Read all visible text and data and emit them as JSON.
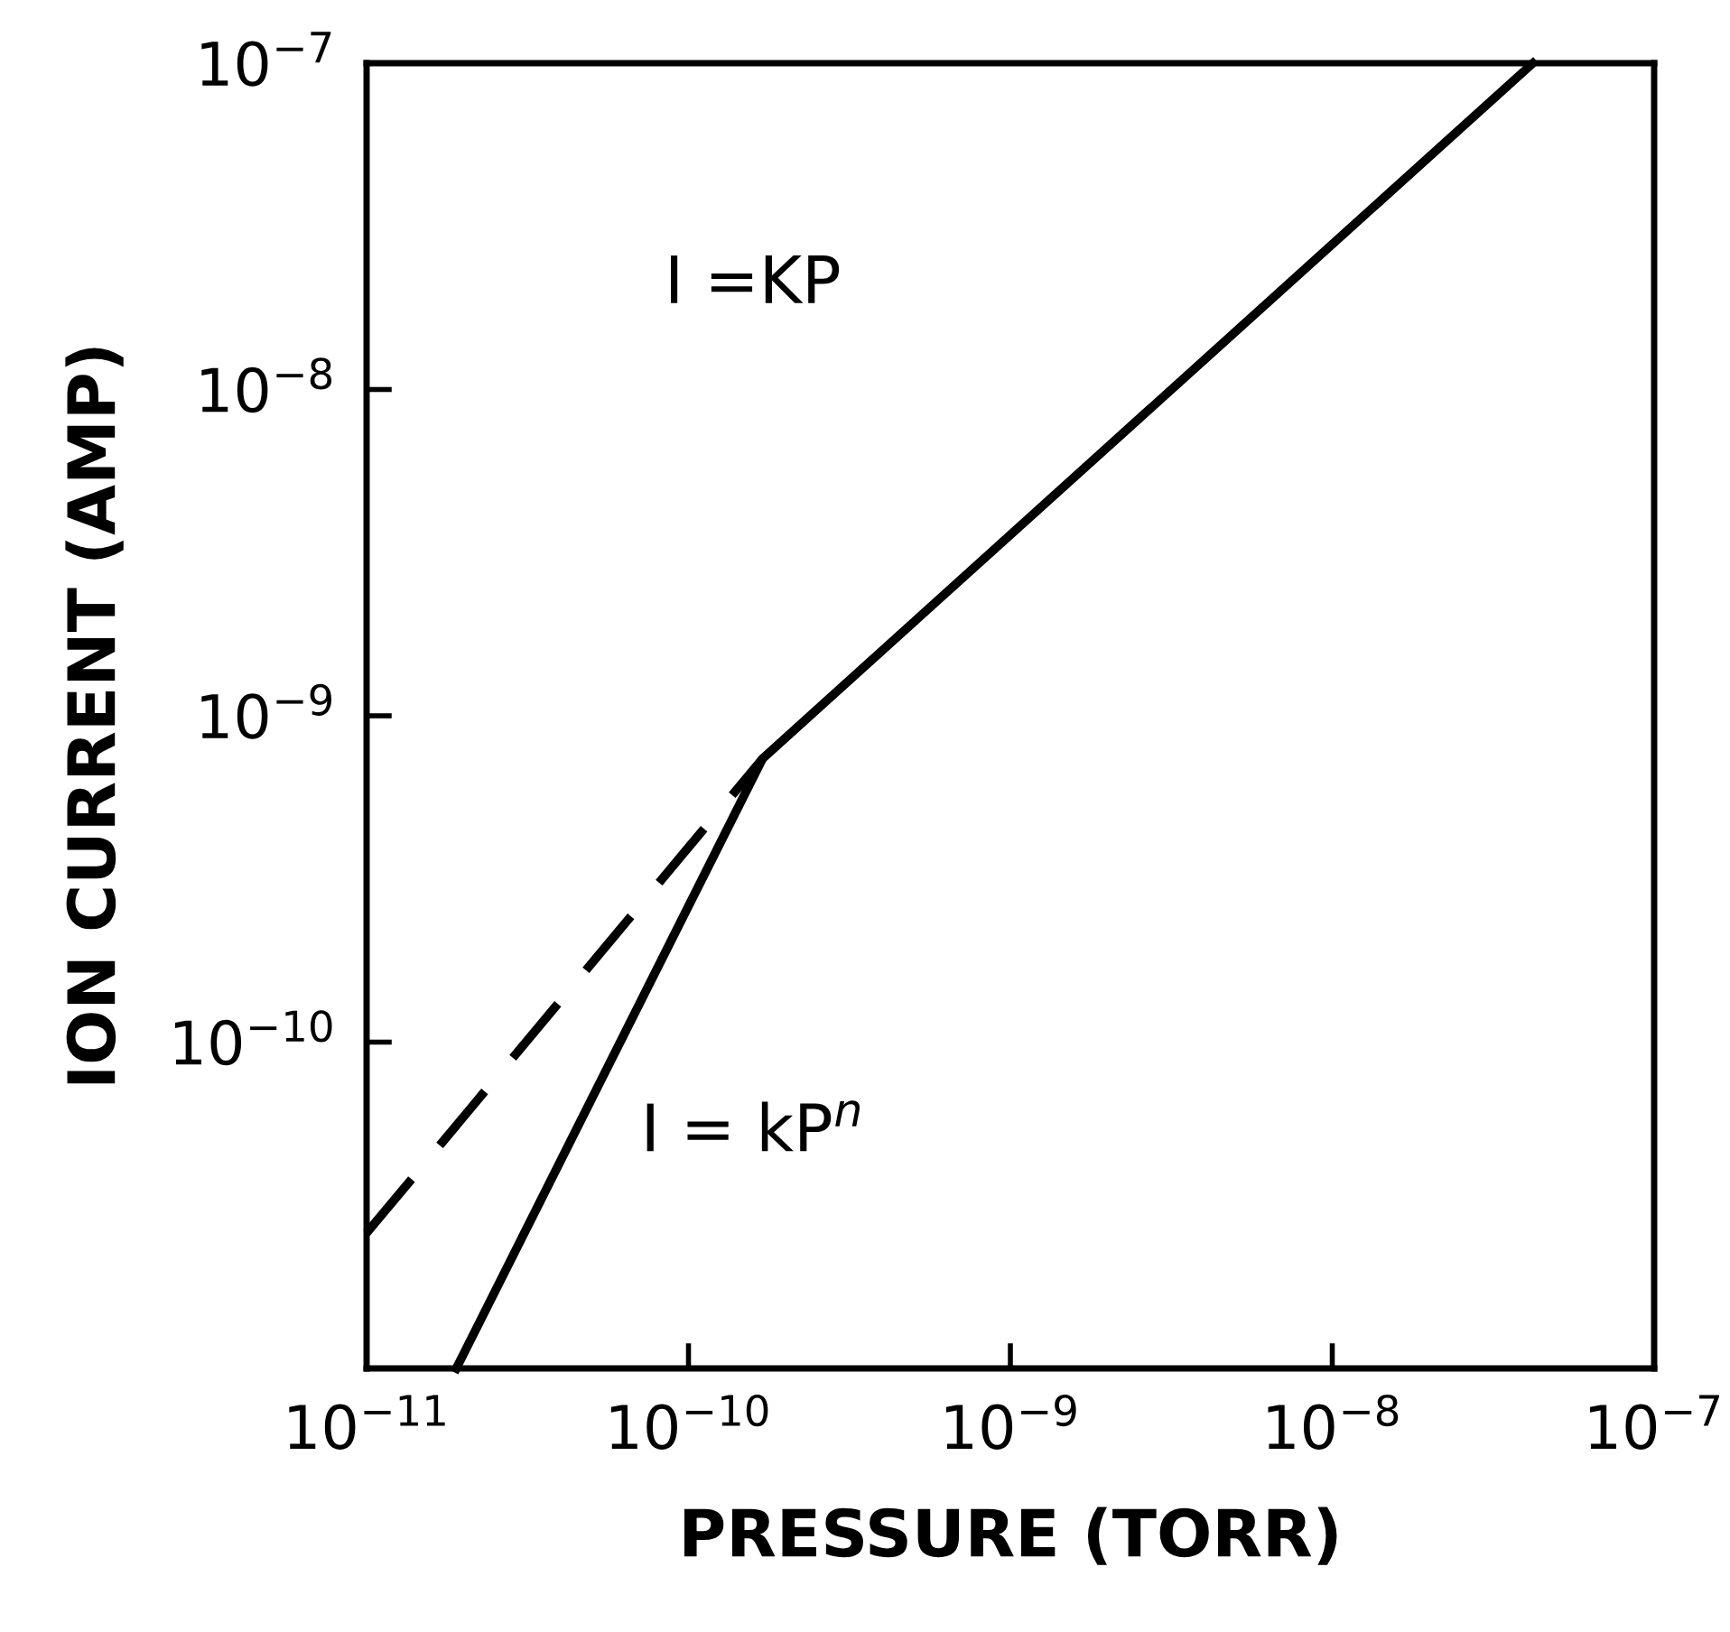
{
  "chart_data": {
    "type": "line",
    "xlabel": "PRESSURE (TORR)",
    "ylabel": "ION CURRENT (AMP)",
    "log": "xy",
    "grid": false,
    "marker": "none",
    "xlim": [
      1e-11,
      1e-07
    ],
    "ylim": [
      1e-11,
      1e-07
    ],
    "xticks": [
      {
        "value": 1e-11,
        "label": "10$^{−11}$"
      },
      {
        "value": 1e-10,
        "label": "10$^{−10}$"
      },
      {
        "value": 1e-09,
        "label": "10$^{−9}$"
      },
      {
        "value": 1e-08,
        "label": "10$^{−8}$"
      },
      {
        "value": 1e-07,
        "label": "10$^{−7}$"
      }
    ],
    "yticks": [
      {
        "value": 1e-11,
        "label": null
      },
      {
        "value": 1e-10,
        "label": "10$^{−10}$"
      },
      {
        "value": 1e-09,
        "label": "10$^{−9}$"
      },
      {
        "value": 1e-08,
        "label": "10$^{−8}$"
      },
      {
        "value": 1e-07,
        "label": "10$^{−7}$"
      }
    ],
    "series": [
      {
        "color": "#000000",
        "line_style": "solid",
        "x": [
          1.9e-11,
          1.7e-10,
          4.2e-08
        ],
        "values": [
          1e-11,
          7.4e-10,
          1e-07
        ]
      },
      {
        "color": "#000000",
        "line_style": "dashed",
        "x": [
          1e-11,
          1.7e-10
        ],
        "values": [
          2.6e-11,
          7.4e-10
        ]
      }
    ],
    "annotations": [
      "I =KP",
      "I = kP$^{n}$"
    ]
  }
}
